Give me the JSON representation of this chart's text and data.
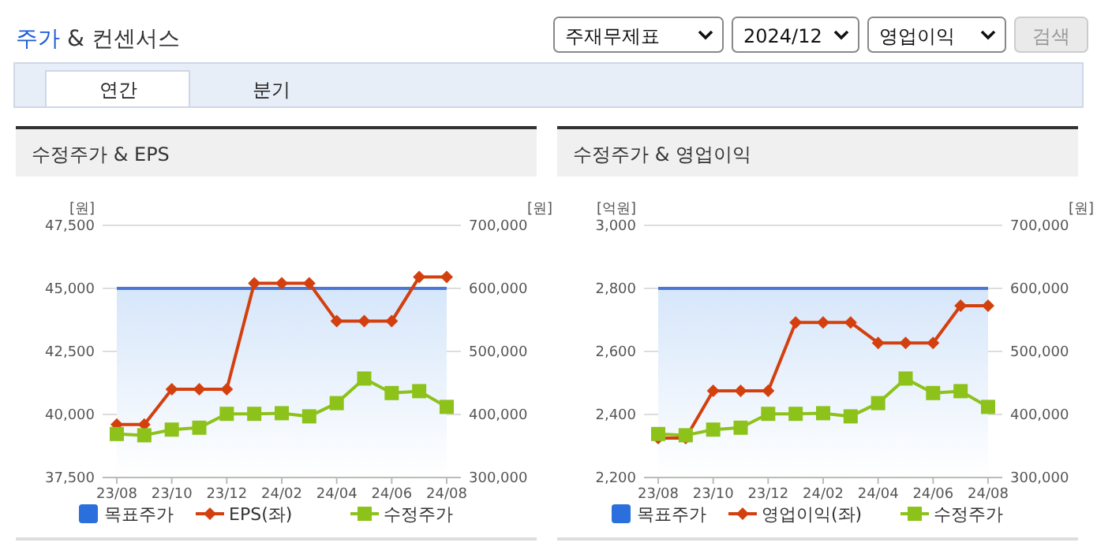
{
  "chart_data": [
    {
      "type": "other",
      "title": "주가 & 컨센서스",
      "annotations": [
        "주재무제표",
        "2024/12",
        "영업이익",
        "검색",
        "연간",
        "분기"
      ]
    },
    {
      "type": "line",
      "title": "수정주가 & EPS",
      "ylabel": "[원]",
      "y2label": "[원]",
      "categories": [
        "23/08",
        null,
        "23/10",
        null,
        "23/12",
        null,
        "24/02",
        null,
        "24/04",
        null,
        "24/06",
        null,
        "24/08"
      ],
      "ylim": [
        37500,
        47500
      ],
      "yticks": [
        {
          "value": 37500,
          "label": "37,500"
        },
        {
          "value": 40000,
          "label": "40,000"
        },
        {
          "value": 42500,
          "label": "42,500"
        },
        {
          "value": 45000,
          "label": "45,000"
        },
        {
          "value": 47500,
          "label": "47,500"
        }
      ],
      "y2lim": [
        300000,
        700000
      ],
      "y2ticks": [
        {
          "value": 300000,
          "label": "300,000"
        },
        {
          "value": 400000,
          "label": "400,000"
        },
        {
          "value": 500000,
          "label": "500,000"
        },
        {
          "value": 600000,
          "label": "600,000"
        },
        {
          "value": 700000,
          "label": "700,000"
        }
      ],
      "grid": "y",
      "legend": "bottom",
      "series": [
        {
          "name": "목표주가",
          "type": "area",
          "axis": "y2",
          "color": "#4a78d4",
          "values": [
            600000,
            600000,
            600000,
            600000,
            600000,
            600000,
            600000,
            600000,
            600000,
            600000,
            600000,
            600000,
            600000
          ]
        },
        {
          "name": "EPS(좌)",
          "type": "line",
          "color": "#d43f0e",
          "marker": "diamond",
          "values": [
            39600,
            39600,
            41000,
            41000,
            41000,
            45200,
            45200,
            45200,
            43700,
            43700,
            43700,
            45450,
            45450
          ]
        },
        {
          "name": "수정주가",
          "type": "line",
          "axis": "y2",
          "color": "#8cc21a",
          "marker": "square",
          "values": [
            369000,
            367000,
            376000,
            379000,
            401000,
            401000,
            402000,
            397000,
            418000,
            457000,
            434000,
            437000,
            412000
          ]
        }
      ]
    },
    {
      "type": "line",
      "title": "수정주가 & 영업이익",
      "ylabel": "[억원]",
      "y2label": "[원]",
      "categories": [
        "23/08",
        null,
        "23/10",
        null,
        "23/12",
        null,
        "24/02",
        null,
        "24/04",
        null,
        "24/06",
        null,
        "24/08"
      ],
      "ylim": [
        2200,
        3000
      ],
      "yticks": [
        {
          "value": 2200,
          "label": "2,200"
        },
        {
          "value": 2400,
          "label": "2,400"
        },
        {
          "value": 2600,
          "label": "2,600"
        },
        {
          "value": 2800,
          "label": "2,800"
        },
        {
          "value": 3000,
          "label": "3,000"
        }
      ],
      "y2lim": [
        300000,
        700000
      ],
      "y2ticks": [
        {
          "value": 300000,
          "label": "300,000"
        },
        {
          "value": 400000,
          "label": "400,000"
        },
        {
          "value": 500000,
          "label": "500,000"
        },
        {
          "value": 600000,
          "label": "600,000"
        },
        {
          "value": 700000,
          "label": "700,000"
        }
      ],
      "grid": "y",
      "legend": "bottom",
      "series": [
        {
          "name": "목표주가",
          "type": "area",
          "axis": "y2",
          "color": "#4a78d4",
          "values": [
            600000,
            600000,
            600000,
            600000,
            600000,
            600000,
            600000,
            600000,
            600000,
            600000,
            600000,
            600000,
            600000
          ]
        },
        {
          "name": "영업이익(좌)",
          "type": "line",
          "color": "#d43f0e",
          "marker": "diamond",
          "values": [
            2325,
            2325,
            2475,
            2475,
            2475,
            2692,
            2692,
            2692,
            2627,
            2627,
            2627,
            2745,
            2745
          ]
        },
        {
          "name": "수정주가",
          "type": "line",
          "axis": "y2",
          "color": "#8cc21a",
          "marker": "square",
          "values": [
            369000,
            367000,
            376000,
            379000,
            401000,
            401000,
            402000,
            397000,
            418000,
            457000,
            434000,
            437000,
            412000
          ]
        }
      ]
    }
  ]
}
